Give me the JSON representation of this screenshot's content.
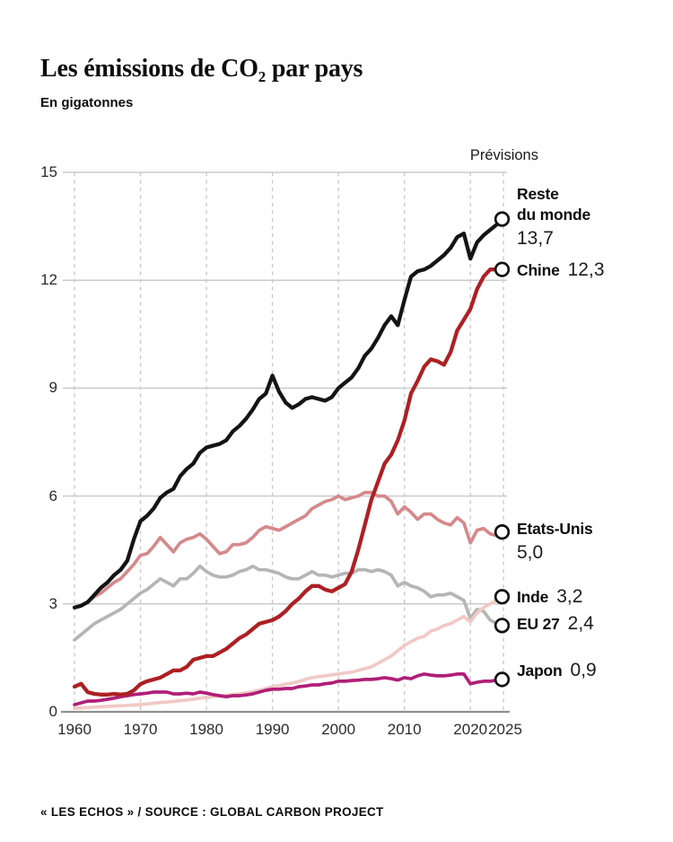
{
  "header": {
    "title": {
      "prefix": "Les émissions de CO",
      "subscript": "2",
      "suffix": " par pays"
    },
    "subtitle": "En gigatonnes"
  },
  "chart": {
    "previsions_label": "Prévisions",
    "y_ticks": [
      {
        "label": "0",
        "value": 0
      },
      {
        "label": "3",
        "value": 3
      },
      {
        "label": "6",
        "value": 6
      },
      {
        "label": "9",
        "value": 9
      },
      {
        "label": "12",
        "value": 12
      },
      {
        "label": "15",
        "value": 15
      }
    ],
    "x_ticks": [
      {
        "label": "1960",
        "year": 1960
      },
      {
        "label": "1970",
        "year": 1970
      },
      {
        "label": "1980",
        "year": 1980
      },
      {
        "label": "1990",
        "year": 1990
      },
      {
        "label": "2000",
        "year": 2000
      },
      {
        "label": "2010",
        "year": 2010
      },
      {
        "label": "2020",
        "year": 2020
      },
      {
        "label": "2025",
        "year": 2025
      }
    ],
    "colors": {
      "grid_solid": "#cbcbcb",
      "grid_dashed": "#c6c6c6",
      "axis": "#909090",
      "marker_stroke": "#121212",
      "marker_fill": "#ffffff"
    }
  },
  "chart_data": {
    "type": "line",
    "title": "Les émissions de CO2 par pays",
    "ylabel": "En gigatonnes",
    "xlabel": "",
    "x_start": 1960,
    "x_end": 2025,
    "ylim": [
      0,
      15
    ],
    "grid": "horizontal solid, vertical dashed per decade",
    "forecast_label": "Prévisions",
    "series": [
      {
        "id": "reste",
        "display_name": "Reste du monde",
        "name_lines": [
          "Reste",
          "du monde"
        ],
        "value_label": "13,7",
        "final_value": 13.7,
        "color": "#141414",
        "stroke_width": 4.3,
        "values": [
          2.9,
          2.95,
          3.05,
          3.25,
          3.45,
          3.6,
          3.8,
          3.95,
          4.2,
          4.8,
          5.3,
          5.45,
          5.65,
          5.95,
          6.1,
          6.2,
          6.55,
          6.75,
          6.9,
          7.2,
          7.35,
          7.4,
          7.45,
          7.55,
          7.8,
          7.95,
          8.15,
          8.4,
          8.7,
          8.85,
          9.35,
          8.9,
          8.6,
          8.45,
          8.55,
          8.7,
          8.75,
          8.7,
          8.65,
          8.75,
          9.0,
          9.15,
          9.3,
          9.55,
          9.9,
          10.1,
          10.4,
          10.75,
          11.0,
          10.75,
          11.45,
          12.1,
          12.25,
          12.3,
          12.4,
          12.55,
          12.7,
          12.9,
          13.2,
          13.3,
          12.6,
          13.05,
          13.25,
          13.4,
          13.55,
          13.7
        ]
      },
      {
        "id": "chine",
        "display_name": "Chine",
        "name_lines": [
          "Chine"
        ],
        "value_label": "12,3",
        "final_value": 12.3,
        "color": "#ad2024",
        "stroke_width": 4.3,
        "values": [
          0.7,
          0.78,
          0.55,
          0.5,
          0.48,
          0.48,
          0.5,
          0.48,
          0.5,
          0.6,
          0.77,
          0.85,
          0.9,
          0.95,
          1.05,
          1.15,
          1.15,
          1.25,
          1.45,
          1.5,
          1.55,
          1.55,
          1.65,
          1.75,
          1.9,
          2.05,
          2.15,
          2.3,
          2.45,
          2.5,
          2.55,
          2.65,
          2.8,
          3.0,
          3.15,
          3.35,
          3.5,
          3.5,
          3.4,
          3.35,
          3.45,
          3.55,
          3.9,
          4.5,
          5.2,
          5.9,
          6.4,
          6.9,
          7.15,
          7.55,
          8.1,
          8.85,
          9.2,
          9.6,
          9.8,
          9.75,
          9.65,
          10.0,
          10.6,
          10.9,
          11.2,
          11.75,
          12.1,
          12.3,
          12.3,
          12.3
        ]
      },
      {
        "id": "etats_unis",
        "display_name": "Etats-Unis",
        "name_lines": [
          "Etats-Unis"
        ],
        "value_label": "5,0",
        "final_value": 5.0,
        "color": "#d5898b",
        "stroke_width": 3.7,
        "values": [
          2.9,
          2.95,
          3.05,
          3.2,
          3.3,
          3.45,
          3.6,
          3.7,
          3.9,
          4.1,
          4.35,
          4.4,
          4.6,
          4.85,
          4.65,
          4.45,
          4.7,
          4.8,
          4.85,
          4.95,
          4.8,
          4.6,
          4.4,
          4.45,
          4.65,
          4.65,
          4.7,
          4.85,
          5.05,
          5.15,
          5.1,
          5.05,
          5.15,
          5.25,
          5.35,
          5.45,
          5.65,
          5.75,
          5.85,
          5.9,
          6.0,
          5.9,
          5.95,
          6.0,
          6.1,
          6.1,
          6.0,
          6.0,
          5.85,
          5.5,
          5.7,
          5.55,
          5.35,
          5.5,
          5.5,
          5.35,
          5.25,
          5.2,
          5.4,
          5.25,
          4.7,
          5.05,
          5.1,
          4.95,
          4.9,
          5.0
        ]
      },
      {
        "id": "inde",
        "display_name": "Inde",
        "name_lines": [
          "Inde"
        ],
        "value_label": "3,2",
        "final_value": 3.2,
        "color": "#f0c9c6",
        "stroke_width": 3.7,
        "values": [
          0.1,
          0.11,
          0.12,
          0.13,
          0.14,
          0.15,
          0.16,
          0.17,
          0.18,
          0.19,
          0.2,
          0.22,
          0.24,
          0.26,
          0.27,
          0.29,
          0.31,
          0.33,
          0.35,
          0.38,
          0.4,
          0.42,
          0.44,
          0.46,
          0.48,
          0.5,
          0.53,
          0.56,
          0.6,
          0.65,
          0.7,
          0.73,
          0.77,
          0.8,
          0.84,
          0.9,
          0.95,
          0.98,
          1.0,
          1.03,
          1.05,
          1.08,
          1.1,
          1.15,
          1.2,
          1.25,
          1.35,
          1.45,
          1.55,
          1.7,
          1.85,
          1.95,
          2.05,
          2.1,
          2.25,
          2.3,
          2.4,
          2.45,
          2.55,
          2.65,
          2.5,
          2.75,
          2.9,
          3.0,
          3.1,
          3.2
        ]
      },
      {
        "id": "eu27",
        "display_name": "EU 27",
        "name_lines": [
          "EU 27"
        ],
        "value_label": "2,4",
        "final_value": 2.4,
        "color": "#b5b5b5",
        "stroke_width": 3.7,
        "values": [
          2.0,
          2.15,
          2.3,
          2.45,
          2.55,
          2.65,
          2.75,
          2.85,
          3.0,
          3.15,
          3.3,
          3.4,
          3.55,
          3.7,
          3.6,
          3.5,
          3.7,
          3.7,
          3.85,
          4.05,
          3.9,
          3.8,
          3.75,
          3.75,
          3.8,
          3.9,
          3.95,
          4.05,
          3.95,
          3.95,
          3.9,
          3.85,
          3.75,
          3.7,
          3.7,
          3.8,
          3.9,
          3.8,
          3.8,
          3.75,
          3.8,
          3.85,
          3.85,
          3.95,
          3.95,
          3.9,
          3.95,
          3.9,
          3.8,
          3.5,
          3.6,
          3.5,
          3.45,
          3.35,
          3.2,
          3.25,
          3.25,
          3.3,
          3.2,
          3.1,
          2.6,
          2.85,
          2.8,
          2.55,
          2.45,
          2.4
        ]
      },
      {
        "id": "japon",
        "display_name": "Japon",
        "name_lines": [
          "Japon"
        ],
        "value_label": "0,9",
        "final_value": 0.9,
        "color": "#b01f78",
        "stroke_width": 3.7,
        "values": [
          0.2,
          0.25,
          0.3,
          0.3,
          0.32,
          0.35,
          0.38,
          0.42,
          0.45,
          0.48,
          0.5,
          0.52,
          0.55,
          0.55,
          0.55,
          0.5,
          0.5,
          0.52,
          0.5,
          0.55,
          0.52,
          0.48,
          0.45,
          0.42,
          0.45,
          0.45,
          0.47,
          0.5,
          0.55,
          0.6,
          0.63,
          0.63,
          0.65,
          0.65,
          0.7,
          0.72,
          0.75,
          0.75,
          0.78,
          0.8,
          0.85,
          0.85,
          0.87,
          0.88,
          0.9,
          0.9,
          0.92,
          0.95,
          0.92,
          0.88,
          0.95,
          0.92,
          1.0,
          1.05,
          1.02,
          1.0,
          1.0,
          1.02,
          1.05,
          1.05,
          0.78,
          0.82,
          0.85,
          0.85,
          0.88,
          0.9
        ]
      }
    ]
  },
  "footer": {
    "credit": "« LES ECHOS » / SOURCE : GLOBAL CARBON PROJECT"
  }
}
